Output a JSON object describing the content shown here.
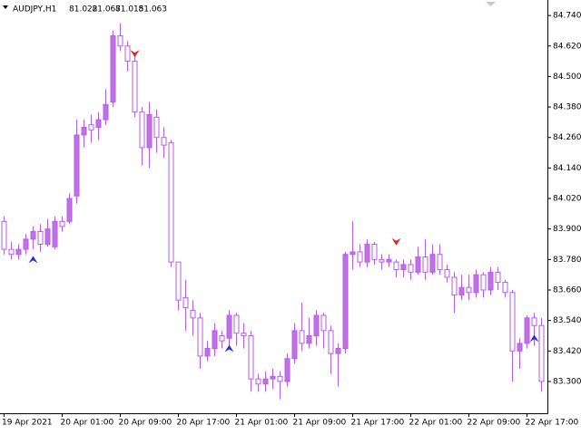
{
  "chart_data": {
    "type": "candlestick",
    "symbol": "AUDJPY,H1",
    "quote": [
      81.022,
      81.067,
      81.015,
      81.063
    ],
    "bull_color": "#c36fe8",
    "bear_color": "#ffffff",
    "line_color": "#b060e0",
    "up_arrow_color": "#2233dd",
    "down_arrow_color": "#dd2222",
    "ylim": [
      83.175,
      84.801
    ],
    "yticks": [
      {
        "value": 84.74,
        "label": "84.740"
      },
      {
        "value": 84.62,
        "label": "84.620"
      },
      {
        "value": 84.5,
        "label": "84.500"
      },
      {
        "value": 84.38,
        "label": "84.380"
      },
      {
        "value": 84.26,
        "label": "84.260"
      },
      {
        "value": 84.14,
        "label": "84.140"
      },
      {
        "value": 84.02,
        "label": "84.020"
      },
      {
        "value": 83.9,
        "label": "83.900"
      },
      {
        "value": 83.78,
        "label": "83.780"
      },
      {
        "value": 83.66,
        "label": "83.660"
      },
      {
        "value": 83.54,
        "label": "83.540"
      },
      {
        "value": 83.42,
        "label": "83.420"
      },
      {
        "value": 83.3,
        "label": "83.300"
      }
    ],
    "categories": [
      "19 Apr 2021",
      null,
      null,
      null,
      null,
      null,
      null,
      null,
      "20 Apr 01:00",
      null,
      null,
      null,
      null,
      null,
      null,
      null,
      "20 Apr 09:00",
      null,
      null,
      null,
      null,
      null,
      null,
      null,
      "20 Apr 17:00",
      null,
      null,
      null,
      null,
      null,
      null,
      null,
      "21 Apr 01:00",
      null,
      null,
      null,
      null,
      null,
      null,
      null,
      "21 Apr 09:00",
      null,
      null,
      null,
      null,
      null,
      null,
      null,
      "21 Apr 17:00",
      null,
      null,
      null,
      null,
      null,
      null,
      null,
      "22 Apr 01:00",
      null,
      null,
      null,
      null,
      null,
      null,
      null,
      "22 Apr 09:00",
      null,
      null,
      null,
      null,
      null,
      null,
      null,
      "22 Apr 17:00",
      null,
      null
    ],
    "open": [
      83.93,
      83.82,
      83.8,
      83.82,
      83.86,
      83.89,
      83.84,
      83.83,
      83.93,
      83.93,
      84.03,
      84.27,
      84.31,
      84.3,
      84.33,
      84.4,
      84.66,
      84.62,
      84.56,
      84.36,
      84.22,
      84.34,
      84.26,
      84.24,
      83.77,
      83.63,
      83.58,
      83.55,
      83.4,
      83.43,
      83.48,
      83.47,
      83.56,
      83.49,
      83.48,
      83.31,
      83.29,
      83.31,
      83.32,
      83.3,
      83.39,
      83.5,
      83.45,
      83.48,
      83.56,
      83.5,
      83.41,
      83.43,
      83.8,
      83.81,
      83.77,
      83.84,
      83.78,
      83.77,
      83.77,
      83.74,
      83.76,
      83.73,
      83.79,
      83.73,
      83.8,
      83.74,
      83.71,
      83.64,
      83.67,
      83.65,
      83.72,
      83.66,
      83.73,
      83.69,
      83.65,
      83.42,
      83.45,
      83.55,
      83.52
    ],
    "high": [
      83.95,
      83.85,
      83.84,
      83.88,
      83.91,
      83.92,
      83.94,
      83.95,
      83.95,
      84.04,
      84.33,
      84.33,
      84.35,
      84.36,
      84.45,
      84.68,
      84.71,
      84.64,
      84.59,
      84.38,
      84.4,
      84.37,
      84.3,
      84.25,
      83.77,
      83.7,
      83.62,
      83.57,
      83.46,
      83.53,
      83.5,
      83.58,
      83.57,
      83.53,
      83.5,
      83.33,
      83.34,
      83.35,
      83.34,
      83.41,
      83.53,
      83.61,
      83.55,
      83.58,
      83.57,
      83.52,
      83.45,
      83.81,
      83.93,
      83.84,
      83.86,
      83.85,
      83.8,
      83.8,
      83.78,
      83.78,
      83.78,
      83.83,
      83.86,
      83.84,
      83.84,
      83.76,
      83.73,
      83.72,
      83.72,
      83.74,
      83.73,
      83.75,
      83.75,
      83.7,
      83.66,
      83.47,
      83.56,
      83.57,
      83.55
    ],
    "low": [
      83.8,
      83.78,
      83.78,
      83.8,
      83.82,
      83.81,
      83.83,
      83.82,
      83.89,
      83.92,
      84.0,
      84.22,
      84.24,
      84.25,
      84.31,
      84.38,
      84.6,
      84.52,
      84.34,
      84.15,
      84.14,
      84.2,
      84.18,
      83.75,
      83.58,
      83.5,
      83.48,
      83.35,
      83.38,
      83.4,
      83.43,
      83.43,
      83.44,
      83.43,
      83.26,
      83.26,
      83.26,
      83.27,
      83.23,
      83.28,
      83.37,
      83.42,
      83.43,
      83.44,
      83.43,
      83.33,
      83.28,
      83.41,
      83.74,
      83.75,
      83.75,
      83.76,
      83.74,
      83.75,
      83.71,
      83.71,
      83.7,
      83.72,
      83.7,
      83.72,
      83.72,
      83.69,
      83.57,
      83.62,
      83.62,
      83.63,
      83.63,
      83.64,
      83.66,
      83.63,
      83.3,
      83.35,
      83.43,
      83.44,
      83.26
    ],
    "close": [
      83.82,
      83.8,
      83.82,
      83.86,
      83.89,
      83.84,
      83.9,
      83.93,
      83.91,
      84.02,
      84.27,
      84.3,
      84.29,
      84.33,
      84.39,
      84.66,
      84.62,
      84.56,
      84.36,
      84.22,
      84.35,
      84.26,
      84.23,
      83.77,
      83.62,
      83.59,
      83.55,
      83.4,
      83.43,
      83.5,
      83.46,
      83.56,
      83.49,
      83.48,
      83.31,
      83.29,
      83.31,
      83.32,
      83.3,
      83.39,
      83.5,
      83.45,
      83.48,
      83.56,
      83.5,
      83.41,
      83.43,
      83.8,
      83.81,
      83.77,
      83.84,
      83.78,
      83.77,
      83.78,
      83.74,
      83.76,
      83.73,
      83.79,
      83.73,
      83.8,
      83.74,
      83.71,
      83.64,
      83.67,
      83.65,
      83.72,
      83.66,
      83.73,
      83.69,
      83.65,
      83.42,
      83.45,
      83.55,
      83.52,
      83.3
    ],
    "up_arrows": [
      null,
      null,
      null,
      null,
      83.78,
      null,
      null,
      null,
      null,
      null,
      null,
      null,
      null,
      null,
      null,
      null,
      null,
      null,
      null,
      null,
      null,
      null,
      null,
      null,
      null,
      null,
      null,
      null,
      null,
      null,
      null,
      83.43,
      null,
      null,
      null,
      null,
      null,
      null,
      null,
      null,
      null,
      null,
      null,
      null,
      null,
      null,
      null,
      null,
      null,
      null,
      null,
      null,
      null,
      null,
      null,
      null,
      null,
      null,
      null,
      null,
      null,
      null,
      null,
      null,
      null,
      null,
      null,
      null,
      null,
      null,
      null,
      null,
      null,
      83.47,
      null
    ],
    "down_arrows": [
      null,
      null,
      null,
      null,
      null,
      null,
      null,
      null,
      null,
      null,
      null,
      null,
      null,
      null,
      null,
      null,
      null,
      null,
      84.59,
      null,
      null,
      null,
      null,
      null,
      null,
      null,
      null,
      null,
      null,
      null,
      null,
      null,
      null,
      null,
      null,
      null,
      null,
      null,
      null,
      null,
      null,
      null,
      null,
      null,
      null,
      null,
      null,
      null,
      null,
      null,
      null,
      null,
      null,
      null,
      83.85,
      null,
      null,
      null,
      null,
      null,
      null,
      null,
      null,
      null,
      null,
      null,
      null,
      null,
      null,
      null,
      null,
      null,
      null,
      null,
      null
    ]
  }
}
